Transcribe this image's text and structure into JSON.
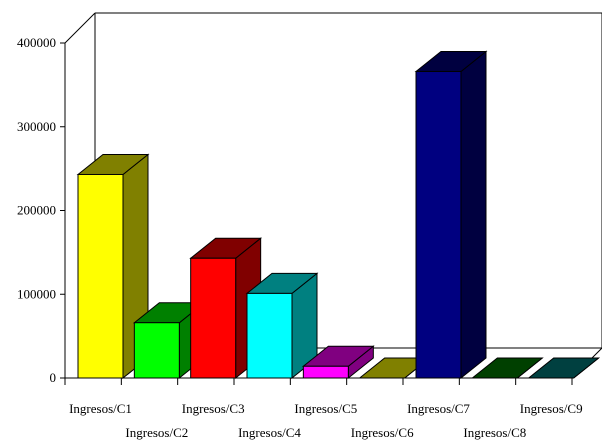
{
  "chart_data": {
    "type": "bar",
    "title": "",
    "xlabel": "",
    "ylabel": "",
    "ylim": [
      0,
      400000
    ],
    "yticks": [
      0,
      100000,
      200000,
      300000,
      400000
    ],
    "grid": false,
    "legend": "none",
    "categories": [
      "Ingresos/C1",
      "Ingresos/C2",
      "Ingresos/C3",
      "Ingresos/C4",
      "Ingresos/C5",
      "Ingresos/C6",
      "Ingresos/C7",
      "Ingresos/C8",
      "Ingresos/C9"
    ],
    "values": [
      243000,
      66000,
      143000,
      101000,
      14000,
      0,
      366000,
      0,
      0
    ],
    "colors": [
      {
        "front": "#ffff00",
        "side": "#808000"
      },
      {
        "front": "#00ff00",
        "side": "#008000"
      },
      {
        "front": "#ff0000",
        "side": "#800000"
      },
      {
        "front": "#00ffff",
        "side": "#008080"
      },
      {
        "front": "#ff00ff",
        "side": "#800080"
      },
      {
        "front": "#808000",
        "side": "#808000"
      },
      {
        "front": "#000080",
        "side": "#000040"
      },
      {
        "front": "#004000",
        "side": "#004000"
      },
      {
        "front": "#004040",
        "side": "#004040"
      }
    ]
  }
}
